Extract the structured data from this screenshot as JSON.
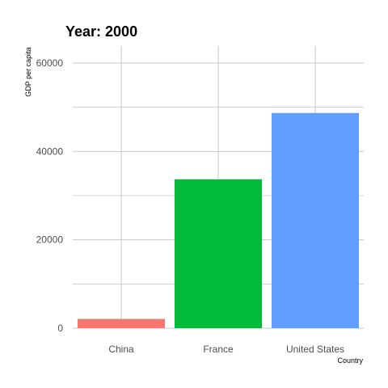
{
  "chart_data": {
    "type": "bar",
    "title": "Year: 2000",
    "xlabel": "Country",
    "ylabel": "GDP per capita",
    "categories": [
      "China",
      "France",
      "United States"
    ],
    "values": [
      2100,
      33700,
      48700
    ],
    "colors": [
      "#F8766D",
      "#00BA38",
      "#619CFF"
    ],
    "ylim": [
      0,
      60000
    ],
    "yticks": [
      0,
      20000,
      40000,
      60000
    ],
    "ytick_labels": [
      "0",
      "20000",
      "40000",
      "60000"
    ],
    "grid": true,
    "legend": "none"
  }
}
